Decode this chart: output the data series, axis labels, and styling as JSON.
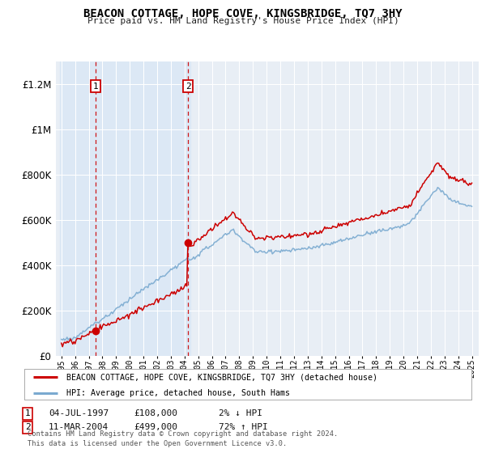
{
  "title": "BEACON COTTAGE, HOPE COVE, KINGSBRIDGE, TQ7 3HY",
  "subtitle": "Price paid vs. HM Land Registry's House Price Index (HPI)",
  "legend_line1": "BEACON COTTAGE, HOPE COVE, KINGSBRIDGE, TQ7 3HY (detached house)",
  "legend_line2": "HPI: Average price, detached house, South Hams",
  "annotation1_date": "04-JUL-1997",
  "annotation1_price": "£108,000",
  "annotation1_hpi": "2% ↓ HPI",
  "annotation2_date": "11-MAR-2004",
  "annotation2_price": "£499,000",
  "annotation2_hpi": "72% ↑ HPI",
  "sale1_year": 1997.5,
  "sale1_value": 108000,
  "sale2_year": 2004.25,
  "sale2_value": 499000,
  "red_color": "#cc0000",
  "blue_color": "#7aaad0",
  "shade_color": "#dce8f5",
  "grid_color": "#ffffff",
  "bg_color": "#e8eef5",
  "footer": "Contains HM Land Registry data © Crown copyright and database right 2024.\nThis data is licensed under the Open Government Licence v3.0.",
  "ylim": [
    0,
    1300000
  ],
  "xlim_start": 1994.6,
  "xlim_end": 2025.5
}
